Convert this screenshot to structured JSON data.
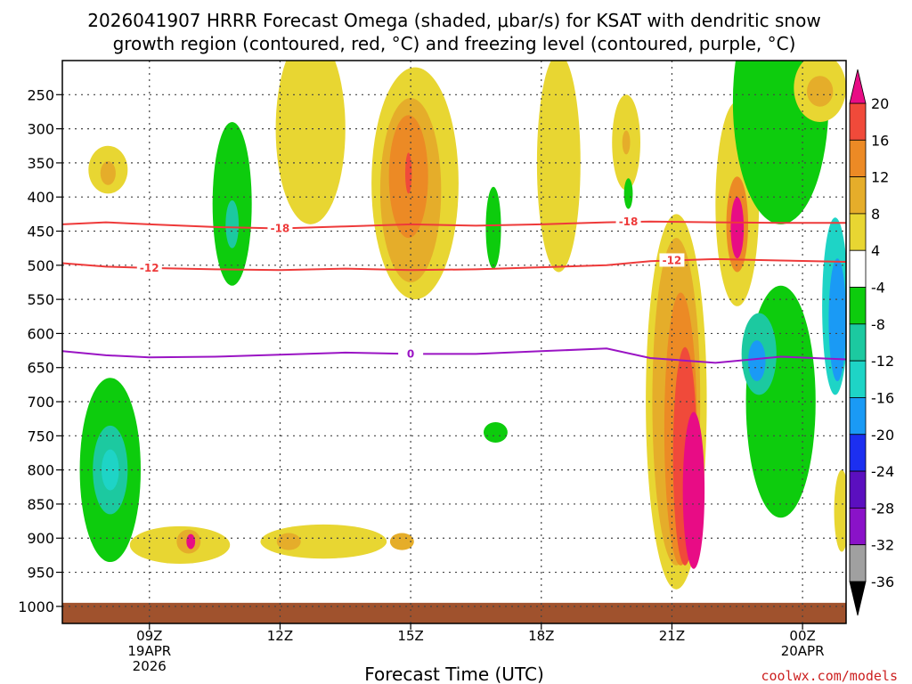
{
  "chart_data": {
    "type": "contour",
    "title_line1": "2026041907 HRRR Forecast Omega (shaded, μbar/s) for KSAT with dendritic snow",
    "title_line2": "growth region (contoured, red, °C) and freezing level (contoured, purple, °C)",
    "xlabel": "Forecast Time (UTC)",
    "x_ticks": [
      {
        "hour": 9,
        "label": "09Z",
        "date": "19APR",
        "year": "2026"
      },
      {
        "hour": 12,
        "label": "12Z"
      },
      {
        "hour": 15,
        "label": "15Z"
      },
      {
        "hour": 18,
        "label": "18Z"
      },
      {
        "hour": 21,
        "label": "21Z"
      },
      {
        "hour": 24,
        "label": "00Z",
        "date": "20APR"
      }
    ],
    "x_range_hours": [
      7,
      25
    ],
    "y_ticks": [
      250,
      300,
      350,
      400,
      450,
      500,
      550,
      600,
      650,
      700,
      750,
      800,
      850,
      900,
      950,
      1000
    ],
    "y_range_hPa": [
      200,
      1025
    ],
    "colorbar": {
      "levels": [
        -36,
        -32,
        -28,
        -24,
        -20,
        -16,
        -12,
        -8,
        -4,
        4,
        8,
        12,
        16,
        20
      ],
      "colors": [
        "#000000",
        "#a0a0a0",
        "#8a12c8",
        "#5b0fbf",
        "#1c2ff0",
        "#1a9af5",
        "#1ed4c6",
        "#1cc9a0",
        "#0dcc0d",
        "#ffffff",
        "#e8d632",
        "#e5ad2a",
        "#ec8a25",
        "#f04a3a",
        "#e80c85"
      ]
    },
    "dgz_contours": [
      {
        "value": -18,
        "label": "-18",
        "color": "#ee3a3a",
        "pressure": [
          440,
          437,
          440,
          444,
          446,
          443,
          440,
          442,
          440,
          437,
          436,
          437,
          438,
          438
        ]
      },
      {
        "value": -12,
        "label": "-12",
        "color": "#ee3a3a",
        "pressure": [
          497,
          502,
          504,
          506,
          507,
          505,
          507,
          506,
          503,
          500,
          494,
          491,
          493,
          495
        ]
      },
      {
        "value": 0,
        "label": "0",
        "color": "#9a14c4",
        "pressure": [
          626,
          632,
          635,
          634,
          631,
          628,
          630,
          630,
          626,
          622,
          636,
          643,
          634,
          638
        ]
      }
    ],
    "contour_x_hours": [
      7,
      8,
      9,
      10.5,
      12,
      13.5,
      15,
      16.5,
      18,
      19.5,
      20.5,
      22,
      23.5,
      25
    ],
    "omega_cells": [
      {
        "level": 4,
        "hour": 8.05,
        "pressure": 360,
        "w": 0.9,
        "h": 70
      },
      {
        "level": 8,
        "hour": 8.05,
        "pressure": 365,
        "w": 0.35,
        "h": 35
      },
      {
        "level": 4,
        "hour": 12.7,
        "pressure": 300,
        "w": 1.6,
        "h": 280
      },
      {
        "level": 4,
        "hour": 15.1,
        "pressure": 380,
        "w": 2.0,
        "h": 340
      },
      {
        "level": 8,
        "hour": 15.0,
        "pressure": 390,
        "w": 1.4,
        "h": 270
      },
      {
        "level": 12,
        "hour": 14.95,
        "pressure": 370,
        "w": 0.9,
        "h": 180
      },
      {
        "level": 16,
        "hour": 14.95,
        "pressure": 365,
        "w": 0.15,
        "h": 60
      },
      {
        "level": 4,
        "hour": 18.4,
        "pressure": 350,
        "w": 1.0,
        "h": 320
      },
      {
        "level": 4,
        "hour": 19.95,
        "pressure": 320,
        "w": 0.65,
        "h": 140
      },
      {
        "level": 8,
        "hour": 19.95,
        "pressure": 320,
        "w": 0.18,
        "h": 35
      },
      {
        "level": 4,
        "hour": 9.7,
        "pressure": 910,
        "w": 2.3,
        "h": 55
      },
      {
        "level": 8,
        "hour": 9.9,
        "pressure": 905,
        "w": 0.55,
        "h": 35
      },
      {
        "level": 20,
        "hour": 9.95,
        "pressure": 905,
        "w": 0.2,
        "h": 22
      },
      {
        "level": 4,
        "hour": 13.0,
        "pressure": 905,
        "w": 2.9,
        "h": 50
      },
      {
        "level": 8,
        "hour": 12.2,
        "pressure": 905,
        "w": 0.55,
        "h": 25
      },
      {
        "level": 8,
        "hour": 14.8,
        "pressure": 905,
        "w": 0.55,
        "h": 25
      },
      {
        "level": -4,
        "hour": 8.1,
        "pressure": 800,
        "w": 1.4,
        "h": 270
      },
      {
        "level": -8,
        "hour": 8.1,
        "pressure": 800,
        "w": 0.8,
        "h": 130
      },
      {
        "level": -12,
        "hour": 8.1,
        "pressure": 800,
        "w": 0.4,
        "h": 60
      },
      {
        "level": -4,
        "hour": 10.9,
        "pressure": 410,
        "w": 0.9,
        "h": 240
      },
      {
        "level": -8,
        "hour": 10.9,
        "pressure": 440,
        "w": 0.3,
        "h": 70
      },
      {
        "level": -4,
        "hour": 16.9,
        "pressure": 445,
        "w": 0.35,
        "h": 120
      },
      {
        "level": -4,
        "hour": 20.0,
        "pressure": 395,
        "w": 0.2,
        "h": 45
      },
      {
        "level": -4,
        "hour": 16.95,
        "pressure": 745,
        "w": 0.55,
        "h": 30
      },
      {
        "level": 4,
        "hour": 21.1,
        "pressure": 700,
        "w": 1.4,
        "h": 550
      },
      {
        "level": 8,
        "hour": 21.1,
        "pressure": 700,
        "w": 1.1,
        "h": 480
      },
      {
        "level": 12,
        "hour": 21.2,
        "pressure": 740,
        "w": 0.75,
        "h": 400
      },
      {
        "level": 16,
        "hour": 21.3,
        "pressure": 780,
        "w": 0.55,
        "h": 320
      },
      {
        "level": 20,
        "hour": 21.5,
        "pressure": 830,
        "w": 0.5,
        "h": 230
      },
      {
        "level": 4,
        "hour": 22.5,
        "pressure": 410,
        "w": 1.0,
        "h": 300
      },
      {
        "level": 12,
        "hour": 22.5,
        "pressure": 440,
        "w": 0.5,
        "h": 140
      },
      {
        "level": 20,
        "hour": 22.5,
        "pressure": 445,
        "w": 0.3,
        "h": 90
      },
      {
        "level": -4,
        "hour": 23.5,
        "pressure": 260,
        "w": 2.2,
        "h": 360
      },
      {
        "level": -4,
        "hour": 23.5,
        "pressure": 700,
        "w": 1.6,
        "h": 340
      },
      {
        "level": -8,
        "hour": 23.0,
        "pressure": 630,
        "w": 0.8,
        "h": 120
      },
      {
        "level": -16,
        "hour": 22.95,
        "pressure": 640,
        "w": 0.4,
        "h": 60
      },
      {
        "level": -12,
        "hour": 24.75,
        "pressure": 560,
        "w": 0.6,
        "h": 260
      },
      {
        "level": -16,
        "hour": 24.8,
        "pressure": 580,
        "w": 0.4,
        "h": 180
      },
      {
        "level": 4,
        "hour": 24.9,
        "pressure": 860,
        "w": 0.35,
        "h": 120
      },
      {
        "level": 4,
        "hour": 24.4,
        "pressure": 240,
        "w": 1.2,
        "h": 100
      },
      {
        "level": 8,
        "hour": 24.4,
        "pressure": 245,
        "w": 0.6,
        "h": 45
      }
    ],
    "surface_pressure": 1000,
    "surface_color": "#a0522d"
  },
  "credit": "coolwx.com/models"
}
